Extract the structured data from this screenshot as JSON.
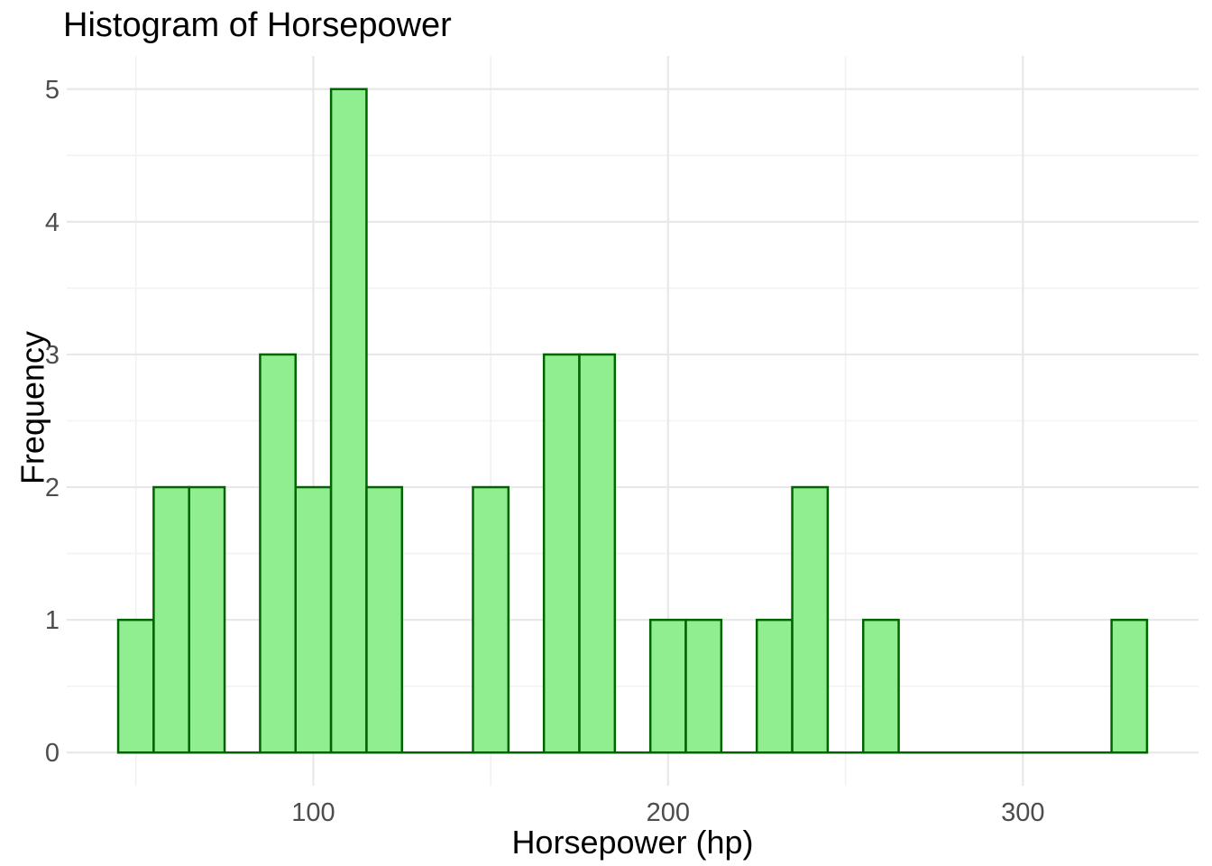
{
  "chart_data": {
    "type": "bar",
    "subtype": "histogram",
    "title": "Histogram of Horsepower",
    "xlabel": "Horsepower (hp)",
    "ylabel": "Frequency",
    "bin_width": 10,
    "bin_starts": [
      45,
      55,
      65,
      75,
      85,
      95,
      105,
      115,
      125,
      135,
      145,
      155,
      165,
      175,
      185,
      195,
      205,
      215,
      225,
      235,
      245,
      255,
      265,
      275,
      285,
      295,
      305,
      315,
      325
    ],
    "counts": [
      1,
      2,
      2,
      0,
      3,
      2,
      5,
      2,
      0,
      0,
      2,
      0,
      3,
      3,
      0,
      1,
      1,
      0,
      1,
      2,
      0,
      1,
      0,
      0,
      0,
      0,
      0,
      0,
      1
    ],
    "total_observations": 32,
    "x_ticks": [
      100,
      200,
      300
    ],
    "x_minor_ticks": [
      50,
      150,
      250
    ],
    "y_ticks": [
      0,
      1,
      2,
      3,
      4,
      5
    ],
    "y_minor_ticks": [
      0.5,
      1.5,
      2.5,
      3.5,
      4.5
    ],
    "xlim": [
      30.5,
      349.5
    ],
    "ylim": [
      -0.25,
      5.25
    ],
    "grid": true,
    "legend_position": "none",
    "colors": {
      "bar_fill": "#90EE90",
      "bar_stroke": "#006400",
      "grid_major": "#e8e8e8",
      "grid_minor": "#f2f2f2",
      "tick_label": "#4d4d4d",
      "title": "#000000",
      "background": "#ffffff"
    }
  }
}
